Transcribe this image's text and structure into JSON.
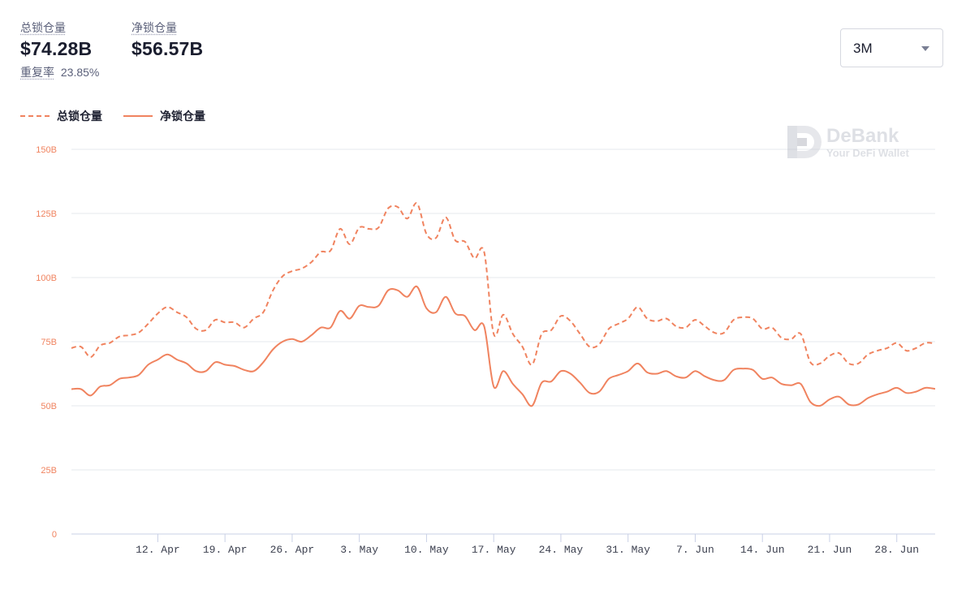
{
  "stats": [
    {
      "label": "总锁仓量",
      "value": "$74.28B"
    },
    {
      "label": "净锁仓量",
      "value": "$56.57B"
    }
  ],
  "repeat_rate": {
    "label": "重复率",
    "value": "23.85%"
  },
  "range_select": {
    "value": "3M"
  },
  "watermark": {
    "brand": "DeBank",
    "tagline": "Your DeFi Wallet"
  },
  "colors": {
    "series": "#f0835f",
    "grid": "#e6e8ee",
    "axis": "#c9d0e6"
  },
  "chart_data": {
    "type": "line",
    "yticks": [
      "0",
      "25B",
      "50B",
      "75B",
      "100B",
      "125B",
      "150B"
    ],
    "ylim": [
      0,
      150
    ],
    "ytick_values": [
      0,
      25,
      50,
      75,
      100,
      125,
      150
    ],
    "grid": true,
    "legend_position": "top-left",
    "xlim": [
      "2021-04-03",
      "2021-07-02"
    ],
    "xticks": [
      {
        "label": "12. Apr",
        "date": "2021-04-12"
      },
      {
        "label": "19. Apr",
        "date": "2021-04-19"
      },
      {
        "label": "26. Apr",
        "date": "2021-04-26"
      },
      {
        "label": "3. May",
        "date": "2021-05-03"
      },
      {
        "label": "10. May",
        "date": "2021-05-10"
      },
      {
        "label": "17. May",
        "date": "2021-05-17"
      },
      {
        "label": "24. May",
        "date": "2021-05-24"
      },
      {
        "label": "31. May",
        "date": "2021-05-31"
      },
      {
        "label": "7. Jun",
        "date": "2021-06-07"
      },
      {
        "label": "14. Jun",
        "date": "2021-06-14"
      },
      {
        "label": "21. Jun",
        "date": "2021-06-21"
      },
      {
        "label": "28. Jun",
        "date": "2021-06-28"
      }
    ],
    "x": [
      "2021-04-03",
      "2021-04-04",
      "2021-04-05",
      "2021-04-06",
      "2021-04-07",
      "2021-04-08",
      "2021-04-09",
      "2021-04-10",
      "2021-04-11",
      "2021-04-12",
      "2021-04-13",
      "2021-04-14",
      "2021-04-15",
      "2021-04-16",
      "2021-04-17",
      "2021-04-18",
      "2021-04-19",
      "2021-04-20",
      "2021-04-21",
      "2021-04-22",
      "2021-04-23",
      "2021-04-24",
      "2021-04-25",
      "2021-04-26",
      "2021-04-27",
      "2021-04-28",
      "2021-04-29",
      "2021-04-30",
      "2021-05-01",
      "2021-05-02",
      "2021-05-03",
      "2021-05-04",
      "2021-05-05",
      "2021-05-06",
      "2021-05-07",
      "2021-05-08",
      "2021-05-09",
      "2021-05-10",
      "2021-05-11",
      "2021-05-12",
      "2021-05-13",
      "2021-05-14",
      "2021-05-15",
      "2021-05-16",
      "2021-05-17",
      "2021-05-18",
      "2021-05-19",
      "2021-05-20",
      "2021-05-21",
      "2021-05-22",
      "2021-05-23",
      "2021-05-24",
      "2021-05-25",
      "2021-05-26",
      "2021-05-27",
      "2021-05-28",
      "2021-05-29",
      "2021-05-30",
      "2021-05-31",
      "2021-06-01",
      "2021-06-02",
      "2021-06-03",
      "2021-06-04",
      "2021-06-05",
      "2021-06-06",
      "2021-06-07",
      "2021-06-08",
      "2021-06-09",
      "2021-06-10",
      "2021-06-11",
      "2021-06-12",
      "2021-06-13",
      "2021-06-14",
      "2021-06-15",
      "2021-06-16",
      "2021-06-17",
      "2021-06-18",
      "2021-06-19",
      "2021-06-20",
      "2021-06-21",
      "2021-06-22",
      "2021-06-23",
      "2021-06-24",
      "2021-06-25",
      "2021-06-26",
      "2021-06-27",
      "2021-06-28",
      "2021-06-29",
      "2021-06-30",
      "2021-07-01",
      "2021-07-02"
    ],
    "series": [
      {
        "name": "总锁仓量",
        "style": "dashed",
        "values": [
          72.5,
          73,
          69,
          73.5,
          74.5,
          77,
          77.5,
          78.5,
          82,
          86,
          88.5,
          86.5,
          84.5,
          80,
          79.5,
          83.5,
          82.5,
          82.5,
          80.5,
          84,
          86.5,
          95,
          100.5,
          102.5,
          103.5,
          106,
          110,
          110.5,
          119,
          113,
          119.5,
          119,
          119.5,
          127,
          127.5,
          123,
          129,
          117,
          115.5,
          123.5,
          114.5,
          114,
          107.5,
          110,
          78,
          85.5,
          78,
          73,
          66,
          78,
          79.5,
          85,
          83,
          78,
          73,
          74,
          80,
          82,
          84,
          88.5,
          84,
          83,
          84,
          81,
          80.5,
          83.5,
          81,
          78.5,
          78.5,
          83.5,
          84.5,
          84,
          80,
          80.5,
          76.5,
          76,
          78,
          67,
          66.5,
          69.5,
          70.5,
          66.5,
          66.5,
          70,
          71.5,
          72.5,
          74.5,
          71.5,
          72.5,
          74.5,
          74.28
        ]
      },
      {
        "name": "净锁仓量",
        "style": "solid",
        "values": [
          56.5,
          56.5,
          54,
          57.5,
          58,
          60.5,
          61,
          62,
          66,
          68,
          70,
          68,
          66.5,
          63.5,
          63.5,
          67,
          66,
          65.5,
          64,
          63.5,
          67,
          72,
          75,
          76,
          75,
          77.5,
          80.5,
          80.5,
          87,
          84,
          89,
          88.5,
          89,
          95,
          95,
          92.5,
          96.5,
          88,
          86.5,
          92.5,
          86,
          85,
          79.5,
          81,
          57.5,
          63.5,
          58.5,
          54.5,
          50,
          59,
          59.5,
          63.5,
          62.5,
          59,
          55,
          55.5,
          60.5,
          62,
          63.5,
          66.5,
          63,
          62.5,
          63.5,
          61.5,
          61,
          63.5,
          61.5,
          60,
          60,
          64,
          64.5,
          64,
          60.5,
          61,
          58.5,
          58,
          58.5,
          51.5,
          50,
          52.5,
          53.5,
          50.5,
          50.5,
          53,
          54.5,
          55.5,
          57,
          55,
          55.5,
          57,
          56.57
        ]
      }
    ]
  }
}
